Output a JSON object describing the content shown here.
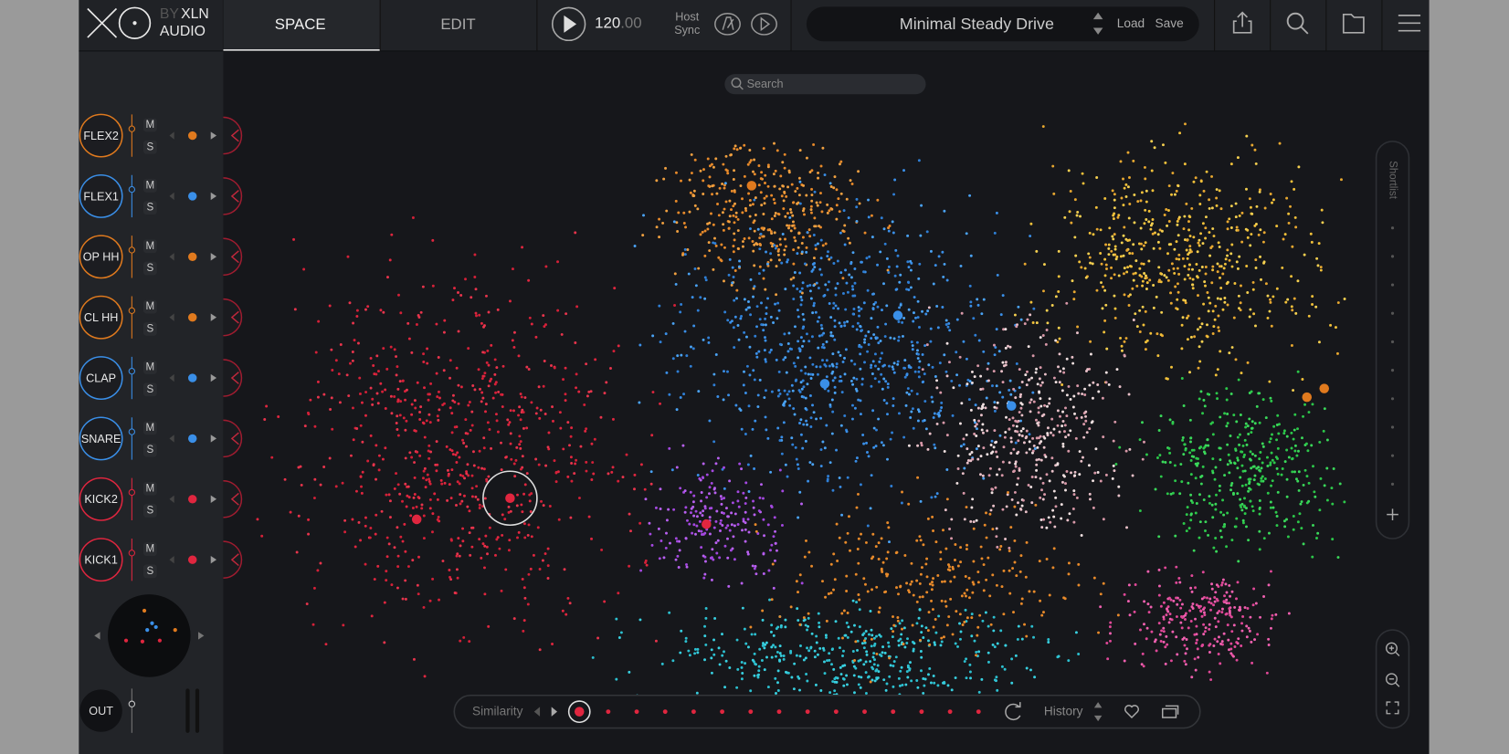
{
  "header": {
    "logo": "XO",
    "logo_by": "BY",
    "logo_brand": "XLN",
    "logo_sub": "AUDIO",
    "tabs": [
      "SPACE",
      "EDIT"
    ],
    "tempo_main": "120",
    "tempo_fraction": ".00",
    "host_sync": [
      "Host",
      "Sync"
    ],
    "preset": "Minimal Steady Drive",
    "load": "Load",
    "save": "Save"
  },
  "search": {
    "placeholder": "Search"
  },
  "tracks": [
    {
      "name": "FLEX2",
      "color": "#e07a1e"
    },
    {
      "name": "FLEX1",
      "color": "#3a8fe8"
    },
    {
      "name": "OP HH",
      "color": "#e07a1e"
    },
    {
      "name": "CL HH",
      "color": "#e07a1e"
    },
    {
      "name": "CLAP",
      "color": "#3a8fe8"
    },
    {
      "name": "SNARE",
      "color": "#3a8fe8"
    },
    {
      "name": "KICK2",
      "color": "#e0263f"
    },
    {
      "name": "KICK1",
      "color": "#e0263f"
    }
  ],
  "track_buttons": {
    "mute": "M",
    "solo": "S"
  },
  "output": {
    "label": "OUT"
  },
  "shortlist": {
    "label": "Shortlist"
  },
  "bottom_bar": {
    "similarity": "Similarity",
    "history": "History"
  }
}
